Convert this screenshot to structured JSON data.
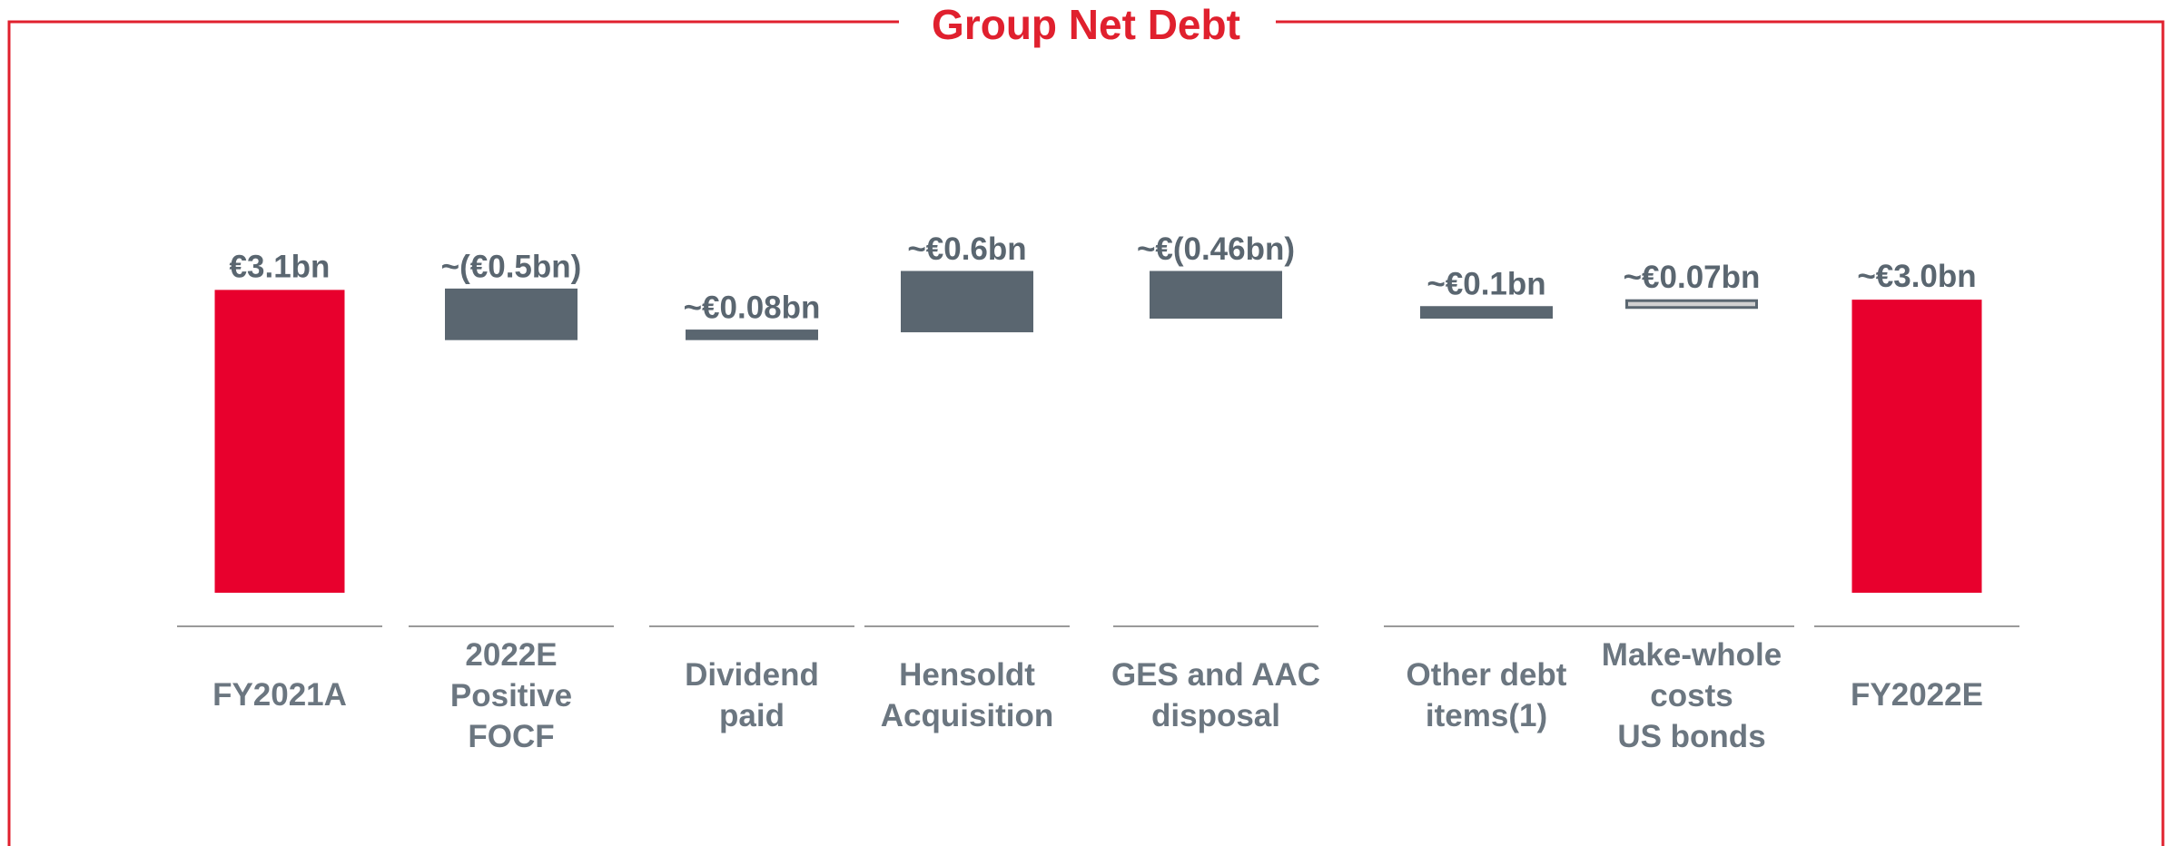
{
  "chart_data": {
    "type": "waterfall",
    "title": "Group Net Debt",
    "categories": [
      "FY2021A",
      "2022E\nPositive\nFOCF",
      "Dividend\npaid",
      "Hensoldt\nAcquisition",
      "GES and AAC\ndisposal",
      "Other debt\nitems(1)",
      "Make-whole\ncosts\nUS bonds",
      "FY2022E"
    ],
    "measures": [
      "total",
      "relative",
      "relative",
      "relative",
      "relative",
      "relative",
      "relative",
      "total"
    ],
    "values": [
      3.1,
      -0.5,
      0.08,
      0.6,
      -0.46,
      0.1,
      0.07,
      3.0
    ],
    "value_labels": [
      "€3.1bn",
      "~(€0.5bn)",
      "~€0.08bn",
      "~€0.6bn",
      "~€(0.46bn)",
      "~€0.1bn",
      "~€0.07bn",
      "~€3.0bn"
    ],
    "colors": [
      "#e8002d",
      "#5a6670",
      "#5a6670",
      "#5a6670",
      "#5a6670",
      "#5a6670",
      "#d0d0d0",
      "#e8002d"
    ]
  }
}
